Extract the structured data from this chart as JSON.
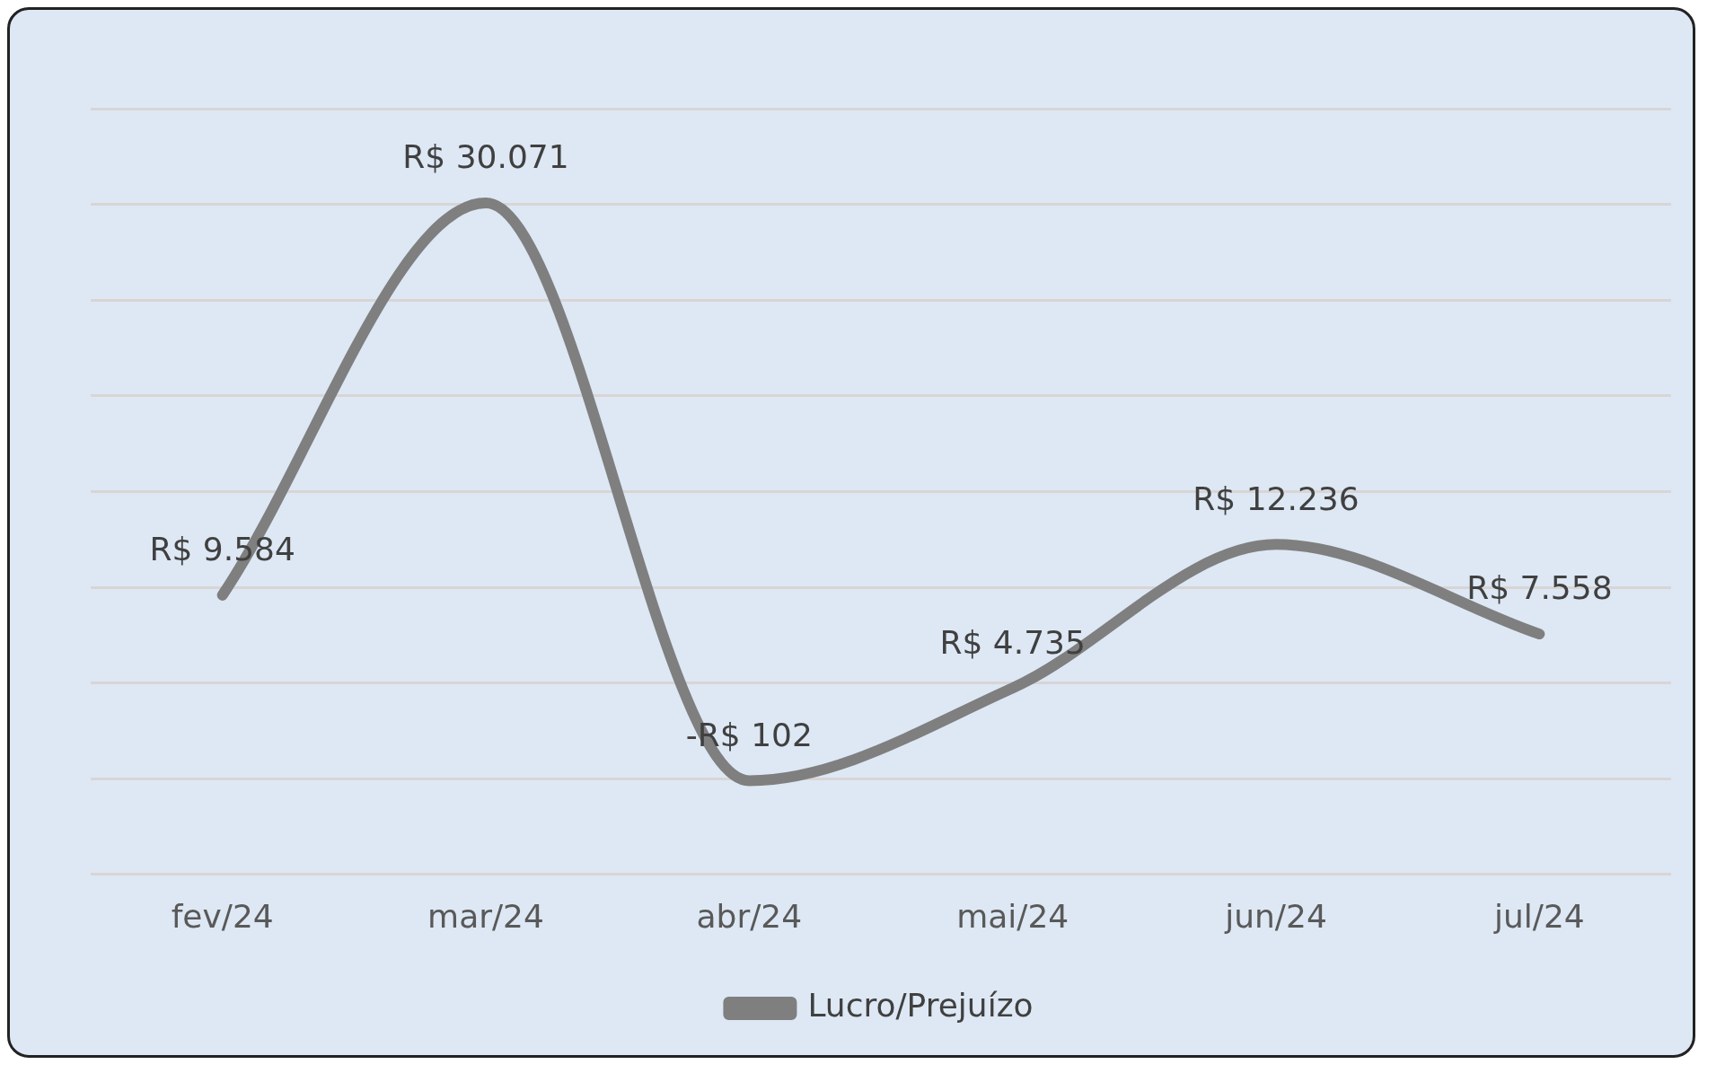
{
  "chart_data": {
    "type": "line",
    "categories": [
      "fev/24",
      "mar/24",
      "abr/24",
      "mai/24",
      "jun/24",
      "jul/24"
    ],
    "series": [
      {
        "name": "Lucro/Prejuízo",
        "color": "#7f7f7f",
        "values": [
          9584,
          30071,
          -102,
          4735,
          12236,
          7558
        ],
        "value_labels": [
          "R$ 9.584",
          "R$ 30.071",
          "-R$ 102",
          "R$ 4.735",
          "R$ 12.236",
          "R$ 7.558"
        ]
      }
    ],
    "ylim": [
      -5000,
      35000
    ],
    "yticks": [
      {
        "value": -5000,
        "label": null
      },
      {
        "value": 0,
        "label": null
      },
      {
        "value": 5000,
        "label": null
      },
      {
        "value": 10000,
        "label": null
      },
      {
        "value": 15000,
        "label": null
      },
      {
        "value": 20000,
        "label": null
      },
      {
        "value": 25000,
        "label": null
      },
      {
        "value": 30000,
        "label": null
      },
      {
        "value": 35000,
        "label": null
      }
    ],
    "grid": "y",
    "legend": "bottom",
    "tick_labels": "x"
  }
}
